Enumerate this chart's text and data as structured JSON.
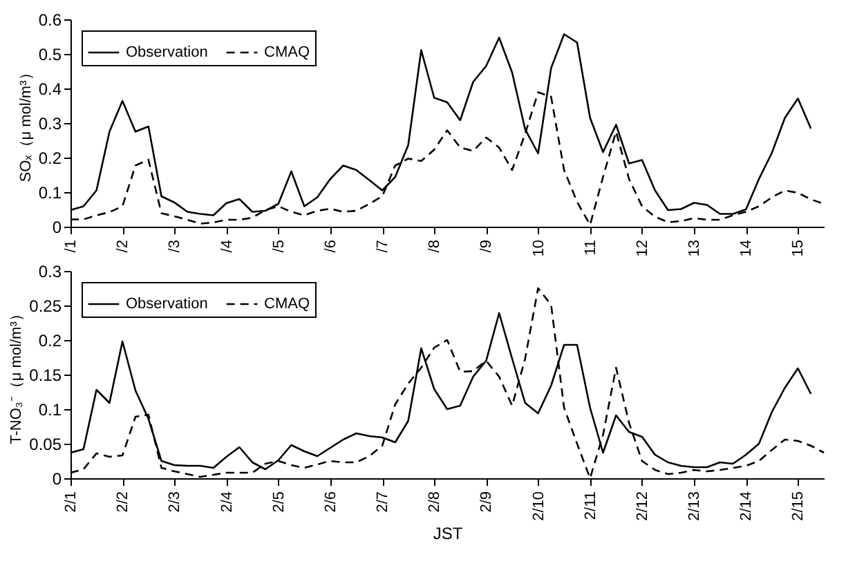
{
  "chart_data": [
    {
      "type": "line",
      "ylabel": "SOₓ（μ mol/m³）",
      "legend": "top left",
      "grid": false,
      "x": [
        "--02-01T00:00",
        "--02-01T06:00",
        "--02-01T12:00",
        "--02-01T18:00",
        "--02-02T00:00",
        "--02-02T06:00",
        "--02-02T12:00",
        "--02-02T18:00",
        "--02-03T00:00",
        "--02-03T06:00",
        "--02-03T12:00",
        "--02-03T18:00",
        "--02-04T00:00",
        "--02-04T06:00",
        "--02-04T12:00",
        "--02-04T18:00",
        "--02-05T00:00",
        "--02-05T06:00",
        "--02-05T12:00",
        "--02-05T18:00",
        "--02-06T00:00",
        "--02-06T06:00",
        "--02-06T12:00",
        "--02-06T18:00",
        "--02-07T00:00",
        "--02-07T06:00",
        "--02-07T12:00",
        "--02-07T18:00",
        "--02-08T00:00",
        "--02-08T06:00",
        "--02-08T12:00",
        "--02-08T18:00",
        "--02-09T00:00",
        "--02-09T06:00",
        "--02-09T12:00",
        "--02-09T18:00",
        "--02-10T00:00",
        "--02-10T06:00",
        "--02-10T12:00",
        "--02-10T18:00",
        "--02-11T00:00",
        "--02-11T06:00",
        "--02-11T12:00",
        "--02-11T18:00",
        "--02-12T00:00",
        "--02-12T06:00",
        "--02-12T12:00",
        "--02-12T18:00",
        "--02-13T00:00",
        "--02-13T06:00",
        "--02-13T12:00",
        "--02-13T18:00",
        "--02-14T00:00",
        "--02-14T06:00",
        "--02-14T12:00",
        "--02-14T18:00",
        "--02-15T00:00",
        "--02-15T06:00",
        "--02-15T12:00"
      ],
      "xlim": [
        "--02-01",
        "--02-15T12:00"
      ],
      "xticks": [
        {
          "value": "--02-01",
          "label": "/1"
        },
        {
          "value": "--02-02",
          "label": "/2"
        },
        {
          "value": "--02-03",
          "label": "/3"
        },
        {
          "value": "--02-04",
          "label": "/4"
        },
        {
          "value": "--02-05",
          "label": "/5"
        },
        {
          "value": "--02-06",
          "label": "/6"
        },
        {
          "value": "--02-07",
          "label": "/7"
        },
        {
          "value": "--02-08",
          "label": "/8"
        },
        {
          "value": "--02-09",
          "label": "/9"
        },
        {
          "value": "--02-10",
          "label": "10"
        },
        {
          "value": "--02-11",
          "label": "11"
        },
        {
          "value": "--02-12",
          "label": "12"
        },
        {
          "value": "--02-13",
          "label": "13"
        },
        {
          "value": "--02-14",
          "label": "14"
        },
        {
          "value": "--02-15",
          "label": "15"
        }
      ],
      "ylim": [
        0,
        0.6
      ],
      "yticks": [
        0,
        0.1,
        0.2,
        0.3,
        0.4,
        0.5,
        0.6
      ],
      "series": [
        {
          "name": "Observation",
          "color": "#000000",
          "line_style": "solid",
          "values": [
            0.048,
            0.059,
            0.105,
            0.275,
            0.364,
            0.275,
            0.29,
            0.088,
            0.07,
            0.043,
            0.037,
            0.033,
            0.068,
            0.08,
            0.043,
            0.046,
            0.066,
            0.16,
            0.059,
            0.085,
            0.138,
            0.177,
            0.164,
            0.135,
            0.105,
            0.144,
            0.236,
            0.511,
            0.373,
            0.36,
            0.308,
            0.419,
            0.465,
            0.547,
            0.446,
            0.282,
            0.212,
            0.459,
            0.557,
            0.533,
            0.315,
            0.216,
            0.295,
            0.183,
            0.193,
            0.105,
            0.048,
            0.051,
            0.069,
            0.063,
            0.037,
            0.037,
            0.05,
            0.138,
            0.214,
            0.315,
            0.371,
            0.284,
            null
          ]
        },
        {
          "name": "CMAQ",
          "color": "#000000",
          "line_style": "dashed",
          "values": [
            0.021,
            0.021,
            0.033,
            0.042,
            0.059,
            0.177,
            0.194,
            0.039,
            0.03,
            0.02,
            0.009,
            0.012,
            0.02,
            0.02,
            0.026,
            0.048,
            0.059,
            0.043,
            0.033,
            0.046,
            0.052,
            0.043,
            0.046,
            0.066,
            0.088,
            0.177,
            0.197,
            0.19,
            0.223,
            0.279,
            0.229,
            0.219,
            0.258,
            0.229,
            0.164,
            0.269,
            0.389,
            0.376,
            0.164,
            0.072,
            0.005,
            0.144,
            0.275,
            0.138,
            0.059,
            0.029,
            0.013,
            0.016,
            0.025,
            0.02,
            0.02,
            0.033,
            0.043,
            0.059,
            0.085,
            0.105,
            0.098,
            0.079,
            0.066
          ]
        }
      ]
    },
    {
      "type": "line",
      "ylabel": "T-NO₃⁻（μ mol/m³）",
      "xlabel": "JST",
      "legend": "top left",
      "grid": false,
      "x": [
        "--02-01T00:00",
        "--02-01T06:00",
        "--02-01T12:00",
        "--02-01T18:00",
        "--02-02T00:00",
        "--02-02T06:00",
        "--02-02T12:00",
        "--02-02T18:00",
        "--02-03T00:00",
        "--02-03T06:00",
        "--02-03T12:00",
        "--02-03T18:00",
        "--02-04T00:00",
        "--02-04T06:00",
        "--02-04T12:00",
        "--02-04T18:00",
        "--02-05T00:00",
        "--02-05T06:00",
        "--02-05T12:00",
        "--02-05T18:00",
        "--02-06T00:00",
        "--02-06T06:00",
        "--02-06T12:00",
        "--02-06T18:00",
        "--02-07T00:00",
        "--02-07T06:00",
        "--02-07T12:00",
        "--02-07T18:00",
        "--02-08T00:00",
        "--02-08T06:00",
        "--02-08T12:00",
        "--02-08T18:00",
        "--02-09T00:00",
        "--02-09T06:00",
        "--02-09T12:00",
        "--02-09T18:00",
        "--02-10T00:00",
        "--02-10T06:00",
        "--02-10T12:00",
        "--02-10T18:00",
        "--02-11T00:00",
        "--02-11T06:00",
        "--02-11T12:00",
        "--02-11T18:00",
        "--02-12T00:00",
        "--02-12T06:00",
        "--02-12T12:00",
        "--02-12T18:00",
        "--02-13T00:00",
        "--02-13T06:00",
        "--02-13T12:00",
        "--02-13T18:00",
        "--02-14T00:00",
        "--02-14T06:00",
        "--02-14T12:00",
        "--02-14T18:00",
        "--02-15T00:00",
        "--02-15T06:00",
        "--02-15T12:00"
      ],
      "xlim": [
        "--02-01",
        "--02-15T12:00"
      ],
      "xticks": [
        {
          "value": "--02-01",
          "label": "2/1"
        },
        {
          "value": "--02-02",
          "label": "2/2"
        },
        {
          "value": "--02-03",
          "label": "2/3"
        },
        {
          "value": "--02-04",
          "label": "2/4"
        },
        {
          "value": "--02-05",
          "label": "2/5"
        },
        {
          "value": "--02-06",
          "label": "2/6"
        },
        {
          "value": "--02-07",
          "label": "2/7"
        },
        {
          "value": "--02-08",
          "label": "2/8"
        },
        {
          "value": "--02-09",
          "label": "2/9"
        },
        {
          "value": "--02-10",
          "label": "2/10"
        },
        {
          "value": "--02-11",
          "label": "2/11"
        },
        {
          "value": "--02-12",
          "label": "2/12"
        },
        {
          "value": "--02-13",
          "label": "2/13"
        },
        {
          "value": "--02-14",
          "label": "2/14"
        },
        {
          "value": "--02-15",
          "label": "2/15"
        }
      ],
      "ylim": [
        0,
        0.3
      ],
      "yticks": [
        0,
        0.05,
        0.1,
        0.15,
        0.2,
        0.25,
        0.3
      ],
      "series": [
        {
          "name": "Observation",
          "color": "#000000",
          "line_style": "solid",
          "values": [
            0.037,
            0.042,
            0.128,
            0.109,
            0.198,
            0.127,
            0.086,
            0.025,
            0.019,
            0.018,
            0.018,
            0.015,
            0.031,
            0.045,
            0.023,
            0.013,
            0.026,
            0.048,
            0.039,
            0.032,
            0.044,
            0.056,
            0.065,
            0.061,
            0.059,
            0.052,
            0.083,
            0.188,
            0.129,
            0.1,
            0.105,
            0.147,
            0.17,
            0.239,
            0.173,
            0.109,
            0.094,
            0.134,
            0.193,
            0.193,
            0.102,
            0.037,
            0.091,
            0.067,
            0.06,
            0.034,
            0.023,
            0.018,
            0.016,
            0.016,
            0.023,
            0.021,
            0.034,
            0.05,
            0.096,
            0.131,
            0.159,
            0.122,
            null
          ]
        },
        {
          "name": "CMAQ",
          "color": "#000000",
          "line_style": "dashed",
          "values": [
            0.008,
            0.013,
            0.036,
            0.031,
            0.033,
            0.089,
            0.092,
            0.015,
            0.01,
            0.006,
            0.002,
            0.005,
            0.008,
            0.008,
            0.008,
            0.021,
            0.025,
            0.019,
            0.015,
            0.02,
            0.025,
            0.023,
            0.023,
            0.032,
            0.047,
            0.107,
            0.137,
            0.16,
            0.189,
            0.2,
            0.154,
            0.155,
            0.17,
            0.147,
            0.105,
            0.173,
            0.275,
            0.251,
            0.102,
            0.05,
            0.0,
            0.063,
            0.16,
            0.08,
            0.025,
            0.012,
            0.006,
            0.008,
            0.012,
            0.01,
            0.012,
            0.015,
            0.018,
            0.025,
            0.041,
            0.056,
            0.054,
            0.047,
            0.037
          ]
        }
      ]
    }
  ]
}
